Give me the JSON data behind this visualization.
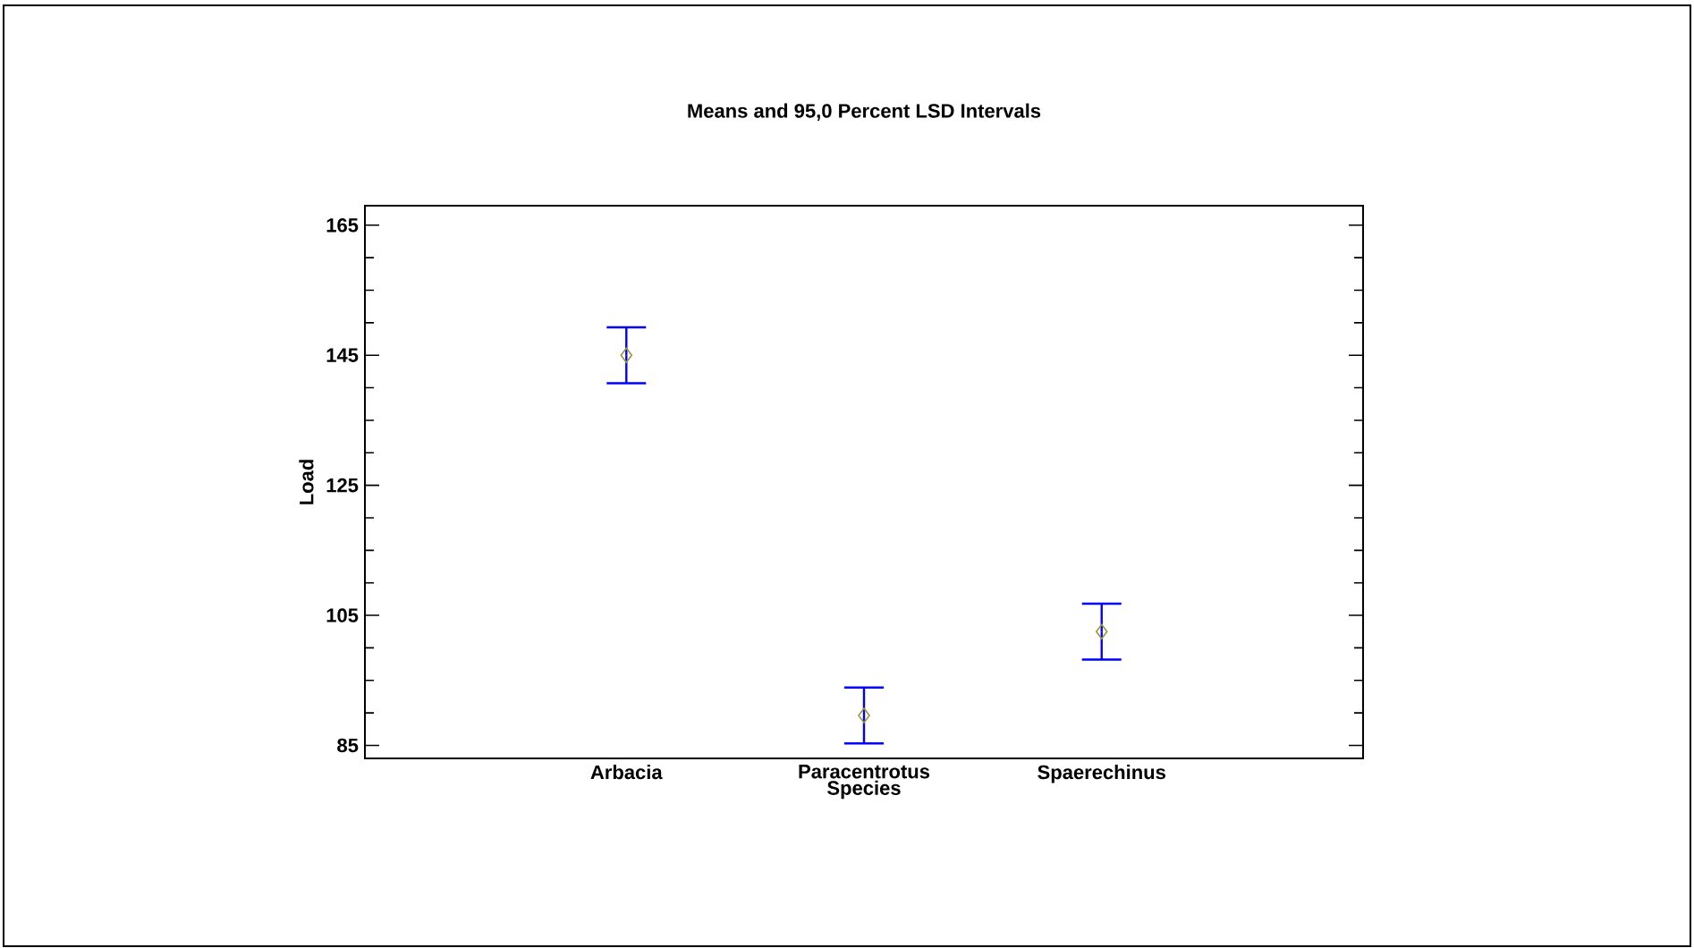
{
  "chart_data": {
    "type": "scatter",
    "title": "Means and 95,0 Percent LSD Intervals",
    "xlabel": "Species",
    "ylabel": "Load",
    "categories": [
      "Arbacia",
      "Paracentrotus",
      "Spaerechinus"
    ],
    "series": [
      {
        "color": "#999933",
        "values": [
          145.0,
          89.6,
          102.5
        ],
        "errors": [
          4.3,
          4.3,
          4.3
        ]
      }
    ],
    "ylim": [
      83,
      168
    ],
    "yticks": [
      85,
      105,
      125,
      145,
      165
    ],
    "marker": "diamond",
    "grid": false
  }
}
